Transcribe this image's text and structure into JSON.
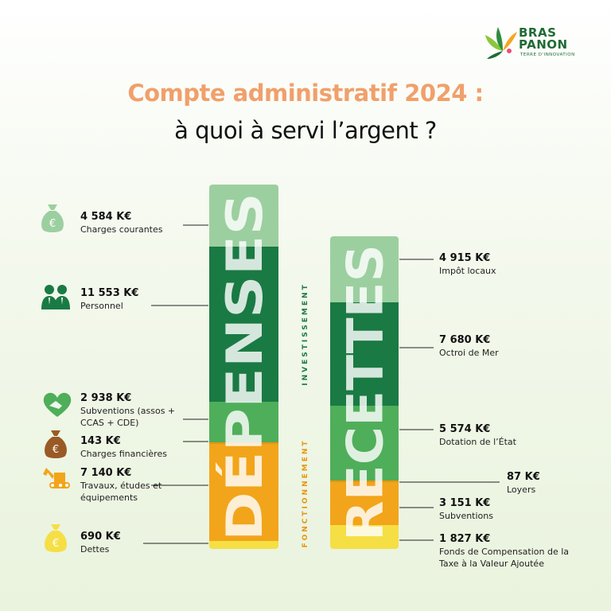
{
  "logo": {
    "line1": "BRAS",
    "line2": "PANON",
    "tagline": "TERRE D'INNOVATION"
  },
  "title": {
    "line1": "Compte administratif 2024 :",
    "line2": "à quoi à servi l’argent ?"
  },
  "chart_data": {
    "type": "bar",
    "stacked": true,
    "unit": "K€",
    "section_labels": {
      "upper": "INVESTISSEMENT",
      "lower": "FONCTIONNEMENT"
    },
    "bars": [
      {
        "name": "DÉPENSES",
        "segments": [
          {
            "value_text": "4 584 K€",
            "label": "Charges courantes",
            "color": "#9ccf9f"
          },
          {
            "value_text": "11 553 K€",
            "label": "Personnel",
            "color": "#1a7a43"
          },
          {
            "value_text": "2 938 K€",
            "label": "Subventions (assos + CCAS + CDE)",
            "color": "#4fae5a"
          },
          {
            "value_text": "143 K€",
            "label": "Charges financières",
            "color": "#e8950f"
          },
          {
            "value_text": "7 140 K€",
            "label": "Travaux, études et équipements",
            "color": "#f2a51a"
          },
          {
            "value_text": "690 K€",
            "label": "Dettes",
            "color": "#f5df45"
          }
        ]
      },
      {
        "name": "RECETTES",
        "segments": [
          {
            "value_text": "4 915 K€",
            "label": "Impôt locaux",
            "color": "#9ccf9f"
          },
          {
            "value_text": "7 680 K€",
            "label": "Octroi de Mer",
            "color": "#1a7a43"
          },
          {
            "value_text": "5 574 K€",
            "label": "Dotation de l’État",
            "color": "#4fae5a"
          },
          {
            "value_text": "87 K€",
            "label": "Loyers",
            "color": "#e8950f"
          },
          {
            "value_text": "3 151 K€",
            "label": "Subventions",
            "color": "#f2a51a"
          },
          {
            "value_text": "1 827 K€",
            "label": "Fonds de Compensation de la Taxe à la Valeur Ajoutée",
            "color": "#f5df45"
          }
        ]
      }
    ]
  },
  "icons": {
    "charges_courantes": "money-bag-icon",
    "personnel": "people-icon",
    "subventions": "handshake-heart-icon",
    "charges_financieres": "money-bag-icon",
    "travaux": "excavator-icon",
    "dettes": "money-bag-icon"
  }
}
